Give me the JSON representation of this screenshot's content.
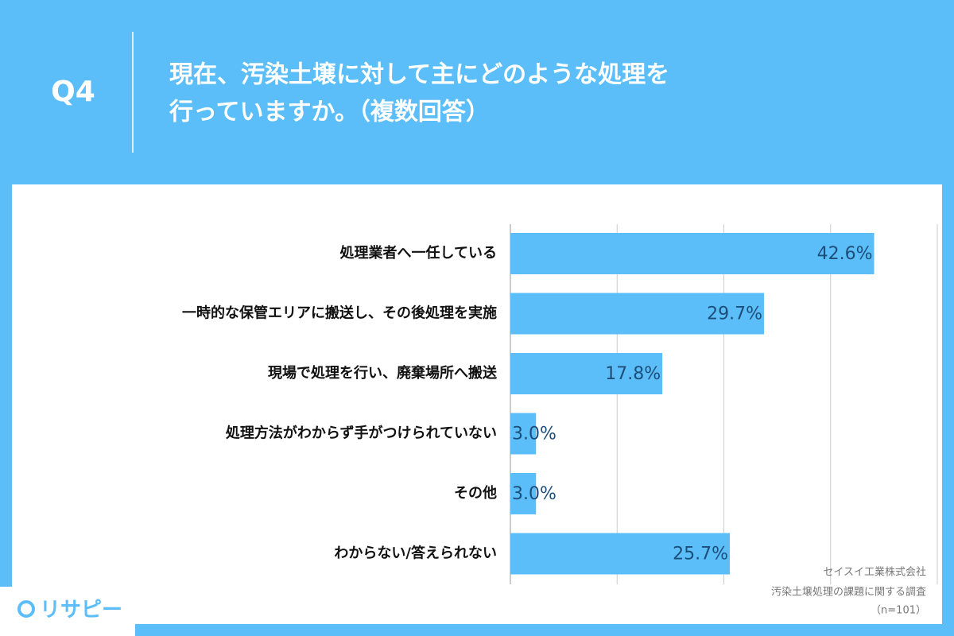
{
  "chart_data": {
    "type": "barh",
    "question_number": "Q4",
    "title_lines": [
      "現在、汚染土壌に対して主にどのような処理を",
      "行っていますか。（複数回答）"
    ],
    "categories": [
      "処理業者へ一任している",
      "一時的な保管エリアに搬送し、その後処理を実施",
      "現場で処理を行い、廃棄場所へ搬送",
      "処理方法がわからず手がつけられていない",
      "その他",
      "わからない/答えられない"
    ],
    "values": [
      42.6,
      29.7,
      17.8,
      3.0,
      3.0,
      25.7
    ],
    "value_labels": [
      "42.6%",
      "29.7%",
      "17.8%",
      "3.0%",
      "3.0%",
      "25.7%"
    ],
    "color": "#5bbef9",
    "xlim": [
      0,
      50
    ],
    "xticks": [
      0,
      12.5,
      25,
      37.5,
      50
    ],
    "grid": true,
    "source_lines": [
      "セイスイ工業株式会社",
      "汚染土壌処理の課題に関する調査",
      "（n=101）"
    ],
    "logo": "リサピー"
  }
}
